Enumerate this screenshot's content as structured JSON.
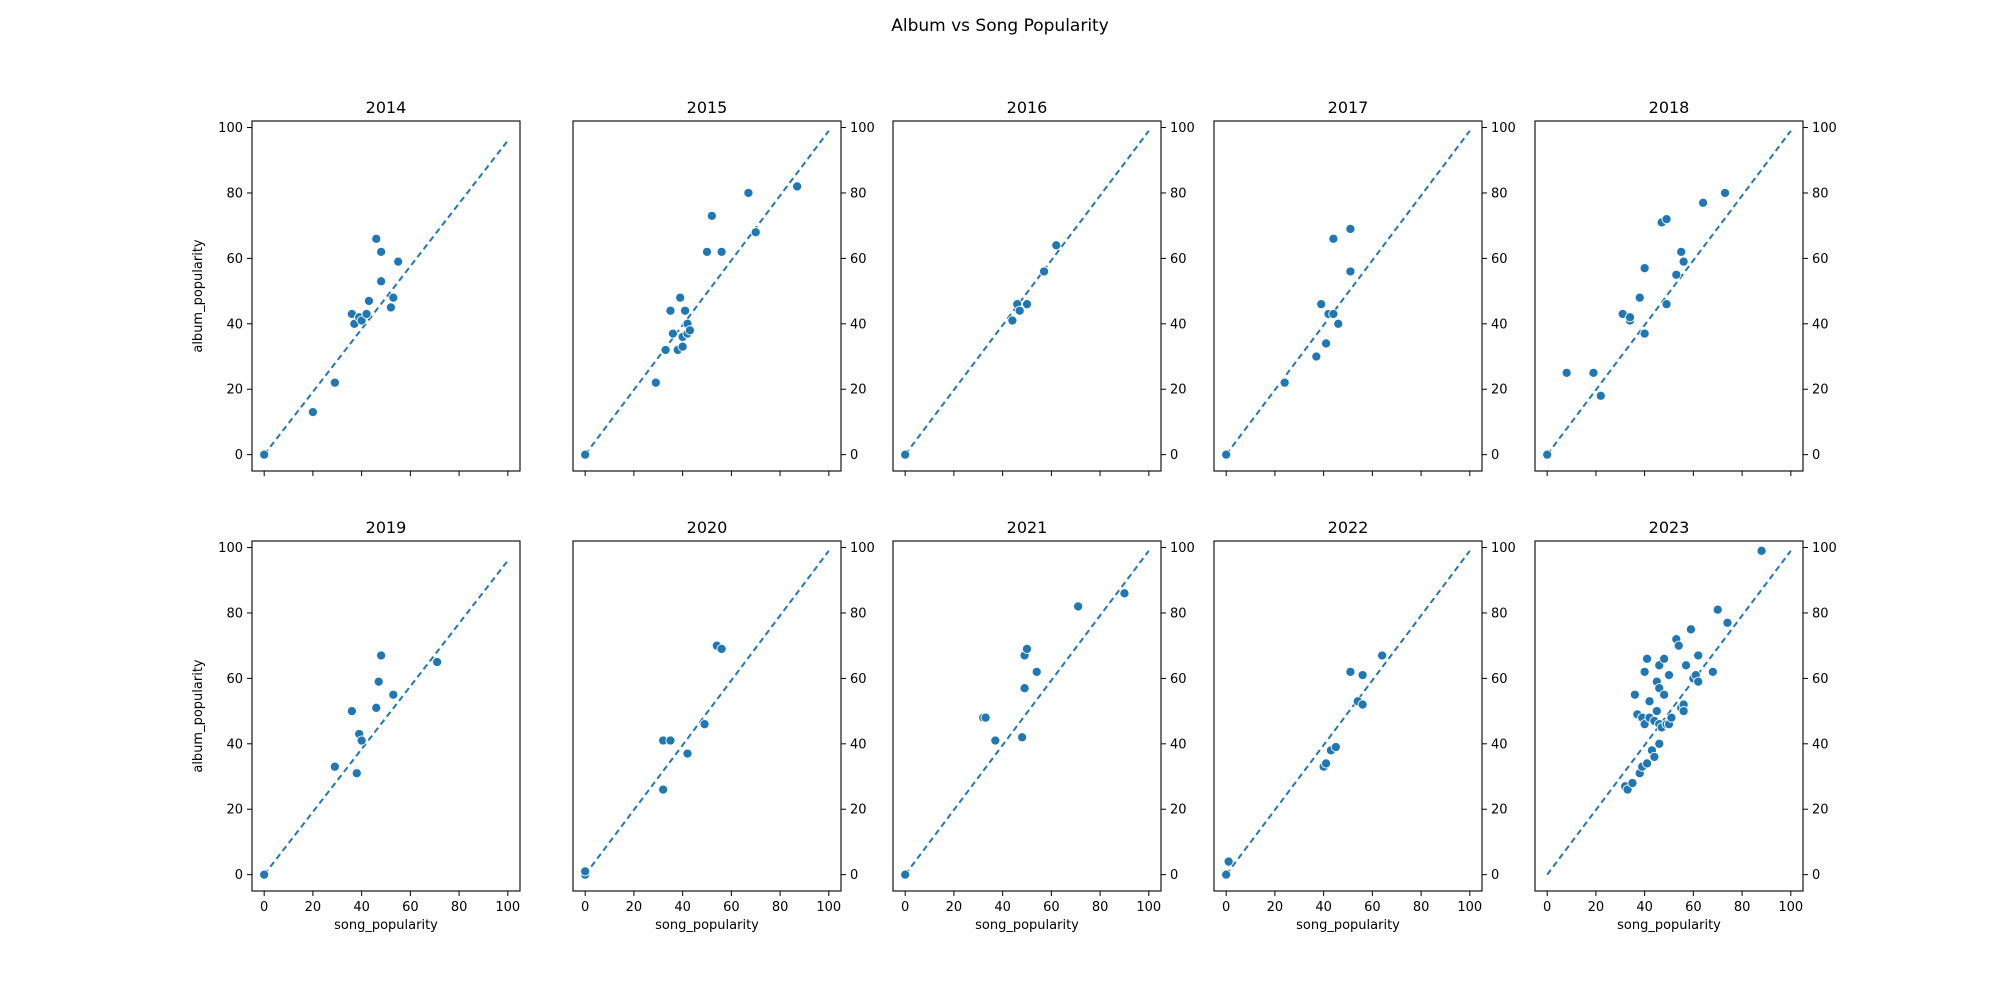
{
  "figure": {
    "title": "Album vs Song Popularity"
  },
  "style": {
    "marker_color": "#1f77b4",
    "line_color": "#1f77b4",
    "axes_color": "#000000"
  },
  "chart_data": [
    {
      "type": "scatter",
      "title": "2014",
      "xlabel": "",
      "ylabel": "album_popularity",
      "xlim": [
        -5,
        105
      ],
      "ylim": [
        -5,
        102
      ],
      "xticks": [
        0,
        20,
        40,
        60,
        80,
        100
      ],
      "yticks": [
        0,
        20,
        40,
        60,
        80,
        100
      ],
      "ytick_side": "left",
      "show_xtick_labels": false,
      "reference_line": {
        "x": [
          0,
          100
        ],
        "y": [
          0,
          96
        ]
      },
      "series": [
        {
          "points": [
            [
              0,
              0
            ],
            [
              20,
              13
            ],
            [
              29,
              22
            ],
            [
              36,
              43
            ],
            [
              37,
              40
            ],
            [
              39,
              42
            ],
            [
              40,
              41
            ],
            [
              42,
              43
            ],
            [
              43,
              47
            ],
            [
              46,
              66
            ],
            [
              48,
              53
            ],
            [
              48,
              62
            ],
            [
              52,
              45
            ],
            [
              53,
              48
            ],
            [
              55,
              59
            ]
          ]
        }
      ]
    },
    {
      "type": "scatter",
      "title": "2015",
      "xlabel": "",
      "ylabel": "",
      "xlim": [
        -5,
        105
      ],
      "ylim": [
        -5,
        102
      ],
      "xticks": [
        0,
        20,
        40,
        60,
        80,
        100
      ],
      "yticks": [
        0,
        20,
        40,
        60,
        80,
        100
      ],
      "ytick_side": "right",
      "show_xtick_labels": false,
      "reference_line": {
        "x": [
          0,
          100
        ],
        "y": [
          0,
          99
        ]
      },
      "series": [
        {
          "points": [
            [
              0,
              0
            ],
            [
              29,
              22
            ],
            [
              33,
              32
            ],
            [
              35,
              44
            ],
            [
              36,
              37
            ],
            [
              38,
              32
            ],
            [
              39,
              48
            ],
            [
              40,
              36
            ],
            [
              40,
              33
            ],
            [
              41,
              44
            ],
            [
              42,
              37
            ],
            [
              42,
              40
            ],
            [
              43,
              38
            ],
            [
              50,
              62
            ],
            [
              52,
              73
            ],
            [
              56,
              62
            ],
            [
              67,
              80
            ],
            [
              70,
              68
            ],
            [
              87,
              82
            ]
          ]
        }
      ]
    },
    {
      "type": "scatter",
      "title": "2016",
      "xlabel": "",
      "ylabel": "",
      "xlim": [
        -5,
        105
      ],
      "ylim": [
        -5,
        102
      ],
      "xticks": [
        0,
        20,
        40,
        60,
        80,
        100
      ],
      "yticks": [
        0,
        20,
        40,
        60,
        80,
        100
      ],
      "ytick_side": "right",
      "show_xtick_labels": false,
      "reference_line": {
        "x": [
          0,
          100
        ],
        "y": [
          0,
          99
        ]
      },
      "series": [
        {
          "points": [
            [
              0,
              0
            ],
            [
              44,
              41
            ],
            [
              46,
              46
            ],
            [
              47,
              44
            ],
            [
              50,
              46
            ],
            [
              57,
              56
            ],
            [
              62,
              64
            ]
          ]
        }
      ]
    },
    {
      "type": "scatter",
      "title": "2017",
      "xlabel": "",
      "ylabel": "",
      "xlim": [
        -5,
        105
      ],
      "ylim": [
        -5,
        102
      ],
      "xticks": [
        0,
        20,
        40,
        60,
        80,
        100
      ],
      "yticks": [
        0,
        20,
        40,
        60,
        80,
        100
      ],
      "ytick_side": "right",
      "show_xtick_labels": false,
      "reference_line": {
        "x": [
          0,
          100
        ],
        "y": [
          0,
          99
        ]
      },
      "series": [
        {
          "points": [
            [
              0,
              0
            ],
            [
              24,
              22
            ],
            [
              37,
              30
            ],
            [
              39,
              46
            ],
            [
              41,
              34
            ],
            [
              42,
              43
            ],
            [
              44,
              43
            ],
            [
              44,
              66
            ],
            [
              46,
              40
            ],
            [
              51,
              56
            ],
            [
              51,
              69
            ]
          ]
        }
      ]
    },
    {
      "type": "scatter",
      "title": "2018",
      "xlabel": "",
      "ylabel": "",
      "xlim": [
        -5,
        105
      ],
      "ylim": [
        -5,
        102
      ],
      "xticks": [
        0,
        20,
        40,
        60,
        80,
        100
      ],
      "yticks": [
        0,
        20,
        40,
        60,
        80,
        100
      ],
      "ytick_side": "right",
      "show_xtick_labels": false,
      "reference_line": {
        "x": [
          0,
          100
        ],
        "y": [
          0,
          99
        ]
      },
      "series": [
        {
          "points": [
            [
              0,
              0
            ],
            [
              8,
              25
            ],
            [
              19,
              25
            ],
            [
              22,
              18
            ],
            [
              31,
              43
            ],
            [
              34,
              41
            ],
            [
              34,
              42
            ],
            [
              38,
              48
            ],
            [
              40,
              37
            ],
            [
              40,
              57
            ],
            [
              47,
              71
            ],
            [
              49,
              72
            ],
            [
              49,
              46
            ],
            [
              53,
              55
            ],
            [
              55,
              62
            ],
            [
              56,
              59
            ],
            [
              64,
              77
            ],
            [
              73,
              80
            ]
          ]
        }
      ]
    },
    {
      "type": "scatter",
      "title": "2019",
      "xlabel": "song_popularity",
      "ylabel": "album_popularity",
      "xlim": [
        -5,
        105
      ],
      "ylim": [
        -5,
        102
      ],
      "xticks": [
        0,
        20,
        40,
        60,
        80,
        100
      ],
      "yticks": [
        0,
        20,
        40,
        60,
        80,
        100
      ],
      "ytick_side": "left",
      "show_xtick_labels": true,
      "reference_line": {
        "x": [
          0,
          100
        ],
        "y": [
          0,
          96
        ]
      },
      "series": [
        {
          "points": [
            [
              0,
              0
            ],
            [
              29,
              33
            ],
            [
              36,
              50
            ],
            [
              38,
              31
            ],
            [
              39,
              43
            ],
            [
              40,
              41
            ],
            [
              46,
              51
            ],
            [
              47,
              59
            ],
            [
              48,
              67
            ],
            [
              53,
              55
            ],
            [
              71,
              65
            ]
          ]
        }
      ]
    },
    {
      "type": "scatter",
      "title": "2020",
      "xlabel": "song_popularity",
      "ylabel": "",
      "xlim": [
        -5,
        105
      ],
      "ylim": [
        -5,
        102
      ],
      "xticks": [
        0,
        20,
        40,
        60,
        80,
        100
      ],
      "yticks": [
        0,
        20,
        40,
        60,
        80,
        100
      ],
      "ytick_side": "right",
      "show_xtick_labels": true,
      "reference_line": {
        "x": [
          0,
          100
        ],
        "y": [
          0,
          99
        ]
      },
      "series": [
        {
          "points": [
            [
              0,
              0
            ],
            [
              0,
              1
            ],
            [
              32,
              26
            ],
            [
              32,
              41
            ],
            [
              35,
              41
            ],
            [
              42,
              37
            ],
            [
              49,
              46
            ],
            [
              54,
              70
            ],
            [
              56,
              69
            ]
          ]
        }
      ]
    },
    {
      "type": "scatter",
      "title": "2021",
      "xlabel": "song_popularity",
      "ylabel": "",
      "xlim": [
        -5,
        105
      ],
      "ylim": [
        -5,
        102
      ],
      "xticks": [
        0,
        20,
        40,
        60,
        80,
        100
      ],
      "yticks": [
        0,
        20,
        40,
        60,
        80,
        100
      ],
      "ytick_side": "right",
      "show_xtick_labels": true,
      "reference_line": {
        "x": [
          0,
          100
        ],
        "y": [
          0,
          99
        ]
      },
      "series": [
        {
          "points": [
            [
              0,
              0
            ],
            [
              32,
              48
            ],
            [
              33,
              48
            ],
            [
              37,
              41
            ],
            [
              48,
              42
            ],
            [
              49,
              57
            ],
            [
              49,
              67
            ],
            [
              50,
              69
            ],
            [
              54,
              62
            ],
            [
              71,
              82
            ],
            [
              90,
              86
            ]
          ]
        }
      ]
    },
    {
      "type": "scatter",
      "title": "2022",
      "xlabel": "song_popularity",
      "ylabel": "",
      "xlim": [
        -5,
        105
      ],
      "ylim": [
        -5,
        102
      ],
      "xticks": [
        0,
        20,
        40,
        60,
        80,
        100
      ],
      "yticks": [
        0,
        20,
        40,
        60,
        80,
        100
      ],
      "ytick_side": "right",
      "show_xtick_labels": true,
      "reference_line": {
        "x": [
          0,
          100
        ],
        "y": [
          0,
          99
        ]
      },
      "series": [
        {
          "points": [
            [
              0,
              0
            ],
            [
              1,
              4
            ],
            [
              40,
              33
            ],
            [
              41,
              34
            ],
            [
              43,
              38
            ],
            [
              45,
              39
            ],
            [
              51,
              62
            ],
            [
              54,
              53
            ],
            [
              56,
              61
            ],
            [
              56,
              52
            ],
            [
              64,
              67
            ]
          ]
        }
      ]
    },
    {
      "type": "scatter",
      "title": "2023",
      "xlabel": "song_popularity",
      "ylabel": "",
      "xlim": [
        -5,
        105
      ],
      "ylim": [
        -5,
        102
      ],
      "xticks": [
        0,
        20,
        40,
        60,
        80,
        100
      ],
      "yticks": [
        0,
        20,
        40,
        60,
        80,
        100
      ],
      "ytick_side": "right",
      "show_xtick_labels": true,
      "reference_line": {
        "x": [
          0,
          100
        ],
        "y": [
          0,
          99
        ]
      },
      "series": [
        {
          "points": [
            [
              32,
              27
            ],
            [
              33,
              26
            ],
            [
              35,
              28
            ],
            [
              36,
              55
            ],
            [
              37,
              49
            ],
            [
              38,
              31
            ],
            [
              39,
              33
            ],
            [
              39,
              48
            ],
            [
              40,
              46
            ],
            [
              40,
              62
            ],
            [
              41,
              34
            ],
            [
              41,
              66
            ],
            [
              42,
              48
            ],
            [
              42,
              53
            ],
            [
              43,
              38
            ],
            [
              44,
              36
            ],
            [
              44,
              47
            ],
            [
              45,
              50
            ],
            [
              45,
              59
            ],
            [
              46,
              40
            ],
            [
              46,
              46
            ],
            [
              46,
              57
            ],
            [
              46,
              64
            ],
            [
              47,
              45
            ],
            [
              48,
              55
            ],
            [
              48,
              66
            ],
            [
              49,
              46
            ],
            [
              50,
              46
            ],
            [
              50,
              61
            ],
            [
              51,
              48
            ],
            [
              53,
              72
            ],
            [
              54,
              70
            ],
            [
              55,
              51
            ],
            [
              56,
              52
            ],
            [
              57,
              64
            ],
            [
              59,
              75
            ],
            [
              60,
              60
            ],
            [
              61,
              61
            ],
            [
              62,
              67
            ],
            [
              62,
              59
            ],
            [
              68,
              62
            ],
            [
              70,
              81
            ],
            [
              74,
              77
            ],
            [
              88,
              99
            ],
            [
              56,
              50
            ]
          ]
        }
      ]
    }
  ]
}
